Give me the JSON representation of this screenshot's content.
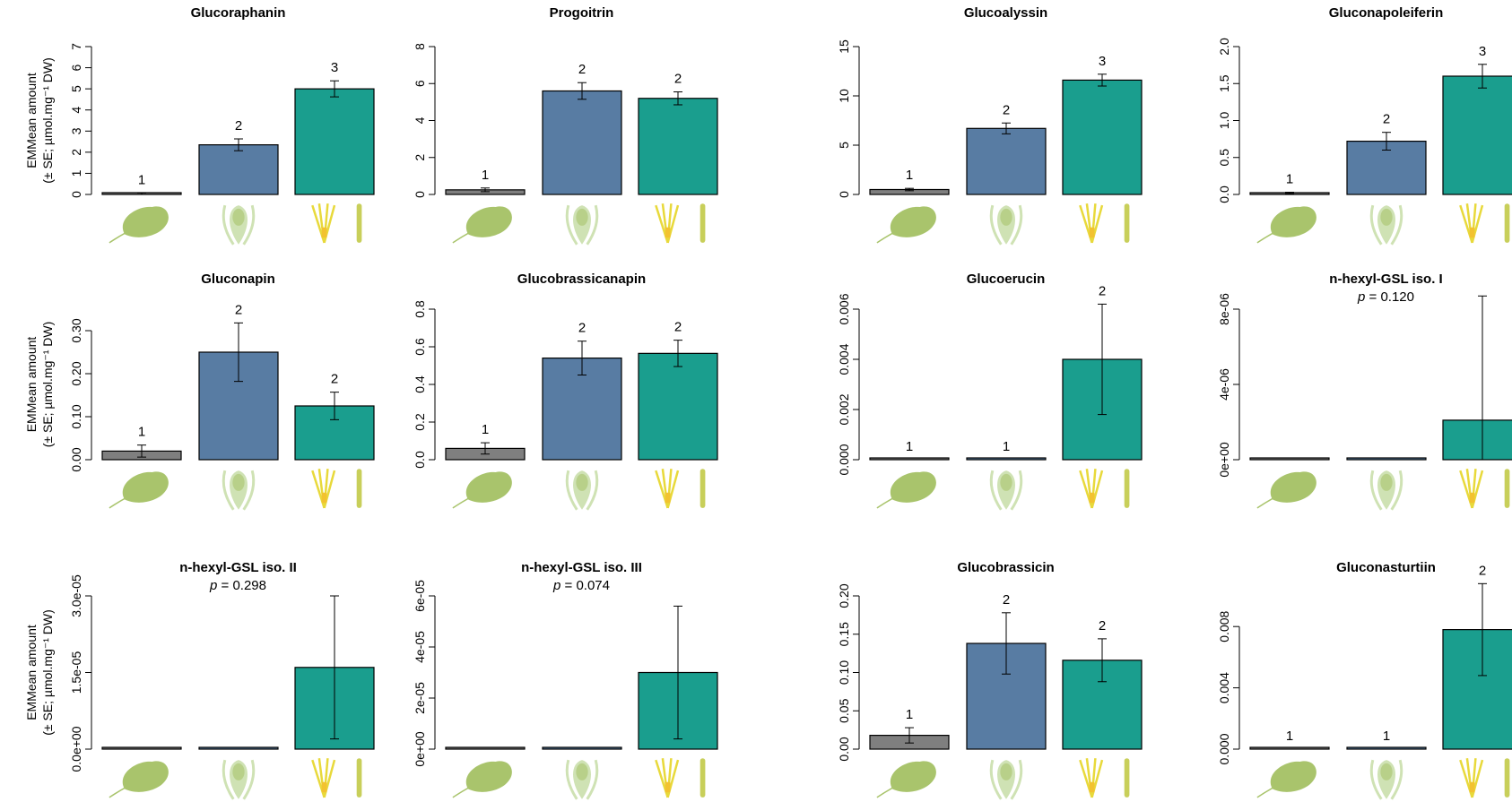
{
  "colors": {
    "leaf": "#7f7f7f",
    "petal": "#587ca3",
    "stamen": "#1a9e8e",
    "icon_leaf": "#a9c46c",
    "icon_petal": "#cfe2b4",
    "icon_stamen": "#e8d93b",
    "icon_pistil": "#c8cf5a"
  },
  "icons": [
    "leaf-icon",
    "petal-icon",
    "stamen-pistil-icon"
  ],
  "y_axis_label_line1": "EMMean amount",
  "y_axis_label_line2": "(± SE; µmol.mg⁻¹ DW)",
  "chart_data": [
    {
      "type": "bar",
      "title": "Glucoraphanin",
      "categories": [
        "leaf",
        "petal",
        "stamen-pistil"
      ],
      "values": [
        0.03,
        2.35,
        5.0
      ],
      "se": [
        0.04,
        0.28,
        0.38
      ],
      "letters": [
        "1",
        "2",
        "3"
      ],
      "ylim": [
        0,
        7
      ],
      "yticks": [
        "0",
        "1",
        "2",
        "3",
        "4",
        "5",
        "6",
        "7"
      ],
      "ytick_values": [
        0,
        1,
        2,
        3,
        4,
        5,
        6,
        7
      ],
      "p_value": ""
    },
    {
      "type": "bar",
      "title": "Progoitrin",
      "categories": [
        "leaf",
        "petal",
        "stamen-pistil"
      ],
      "values": [
        0.25,
        5.6,
        5.2
      ],
      "se": [
        0.1,
        0.45,
        0.35
      ],
      "letters": [
        "1",
        "2",
        "2"
      ],
      "ylim": [
        0,
        8
      ],
      "yticks": [
        "0",
        "2",
        "4",
        "6",
        "8"
      ],
      "ytick_values": [
        0,
        2,
        4,
        6,
        8
      ],
      "p_value": ""
    },
    {
      "type": "bar",
      "title": "Glucoalyssin",
      "categories": [
        "leaf",
        "petal",
        "stamen-pistil"
      ],
      "values": [
        0.5,
        6.7,
        11.6
      ],
      "se": [
        0.12,
        0.55,
        0.6
      ],
      "letters": [
        "1",
        "2",
        "3"
      ],
      "ylim": [
        0,
        15
      ],
      "yticks": [
        "0",
        "5",
        "10",
        "15"
      ],
      "ytick_values": [
        0,
        5,
        10,
        15
      ],
      "p_value": ""
    },
    {
      "type": "bar",
      "title": "Gluconapoleiferin",
      "categories": [
        "leaf",
        "petal",
        "stamen-pistil"
      ],
      "values": [
        0.02,
        0.72,
        1.6
      ],
      "se": [
        0.01,
        0.12,
        0.16
      ],
      "letters": [
        "1",
        "2",
        "3"
      ],
      "ylim": [
        0,
        2.0
      ],
      "yticks": [
        "0.0",
        "0.5",
        "1.0",
        "1.5",
        "2.0"
      ],
      "ytick_values": [
        0,
        0.5,
        1.0,
        1.5,
        2.0
      ],
      "p_value": ""
    },
    {
      "type": "bar",
      "title": "Gluconapin",
      "categories": [
        "leaf",
        "petal",
        "stamen-pistil"
      ],
      "values": [
        0.02,
        0.25,
        0.125
      ],
      "se": [
        0.014,
        0.068,
        0.032
      ],
      "letters": [
        "1",
        "2",
        "2"
      ],
      "ylim": [
        0,
        0.35
      ],
      "yticks": [
        "0.00",
        "0.10",
        "0.20",
        "0.30"
      ],
      "ytick_values": [
        0,
        0.1,
        0.2,
        0.3
      ],
      "p_value": ""
    },
    {
      "type": "bar",
      "title": "Glucobrassicanapin",
      "categories": [
        "leaf",
        "petal",
        "stamen-pistil"
      ],
      "values": [
        0.06,
        0.54,
        0.565
      ],
      "se": [
        0.03,
        0.09,
        0.07
      ],
      "letters": [
        "1",
        "2",
        "2"
      ],
      "ylim": [
        0,
        0.8
      ],
      "yticks": [
        "0.0",
        "0.2",
        "0.4",
        "0.6",
        "0.8"
      ],
      "ytick_values": [
        0,
        0.2,
        0.4,
        0.6,
        0.8
      ],
      "p_value": ""
    },
    {
      "type": "bar",
      "title": "Glucoerucin",
      "categories": [
        "leaf",
        "petal",
        "stamen-pistil"
      ],
      "values": [
        0.0,
        0.0,
        0.004
      ],
      "se": [
        0,
        0,
        0.0022
      ],
      "letters": [
        "1",
        "1",
        "2"
      ],
      "ylim": [
        0,
        0.006
      ],
      "yticks": [
        "0.000",
        "0.002",
        "0.004",
        "0.006"
      ],
      "ytick_values": [
        0,
        0.002,
        0.004,
        0.006
      ],
      "p_value": ""
    },
    {
      "type": "bar",
      "title": "n-hexyl-GSL iso. I",
      "categories": [
        "leaf",
        "petal",
        "stamen-pistil"
      ],
      "values": [
        0.0,
        0.0,
        2.1e-06
      ],
      "se": [
        0,
        0,
        6.6e-06
      ],
      "letters": [
        "",
        "",
        ""
      ],
      "ylim": [
        0,
        8e-06
      ],
      "yticks": [
        "0e+00",
        "4e-06",
        "8e-06"
      ],
      "ytick_values": [
        0,
        4e-06,
        8e-06
      ],
      "p_value": "0.120"
    },
    {
      "type": "bar",
      "title": "n-hexyl-GSL iso. II",
      "categories": [
        "leaf",
        "petal",
        "stamen-pistil"
      ],
      "values": [
        0.0,
        0.0,
        1.6e-05
      ],
      "se": [
        0,
        0,
        1.4e-05
      ],
      "letters": [
        "",
        "",
        ""
      ],
      "ylim": [
        0,
        3e-05
      ],
      "yticks": [
        "0.0e+00",
        "1.5e-05",
        "3.0e-05"
      ],
      "ytick_values": [
        0,
        1.5e-05,
        3e-05
      ],
      "p_value": "0.298"
    },
    {
      "type": "bar",
      "title": "n-hexyl-GSL iso. III",
      "categories": [
        "leaf",
        "petal",
        "stamen-pistil"
      ],
      "values": [
        0.0,
        0.0,
        3e-05
      ],
      "se": [
        0,
        0,
        2.6e-05
      ],
      "letters": [
        "",
        "",
        ""
      ],
      "ylim": [
        0,
        6e-05
      ],
      "yticks": [
        "0e+00",
        "2e-05",
        "4e-05",
        "6e-05"
      ],
      "ytick_values": [
        0,
        2e-05,
        4e-05,
        6e-05
      ],
      "p_value": "0.074"
    },
    {
      "type": "bar",
      "title": "Glucobrassicin",
      "categories": [
        "leaf",
        "petal",
        "stamen-pistil"
      ],
      "values": [
        0.018,
        0.138,
        0.116
      ],
      "se": [
        0.01,
        0.04,
        0.028
      ],
      "letters": [
        "1",
        "2",
        "2"
      ],
      "ylim": [
        0,
        0.2
      ],
      "yticks": [
        "0.00",
        "0.05",
        "0.10",
        "0.15",
        "0.20"
      ],
      "ytick_values": [
        0,
        0.05,
        0.1,
        0.15,
        0.2
      ],
      "p_value": ""
    },
    {
      "type": "bar",
      "title": "Gluconasturtiin",
      "categories": [
        "leaf",
        "petal",
        "stamen-pistil"
      ],
      "values": [
        0.0,
        0.0,
        0.0078
      ],
      "se": [
        0,
        0,
        0.003
      ],
      "letters": [
        "1",
        "1",
        "2"
      ],
      "ylim": [
        0,
        0.01
      ],
      "yticks": [
        "0.000",
        "0.004",
        "0.008"
      ],
      "ytick_values": [
        0,
        0.004,
        0.008
      ],
      "p_value": ""
    }
  ]
}
